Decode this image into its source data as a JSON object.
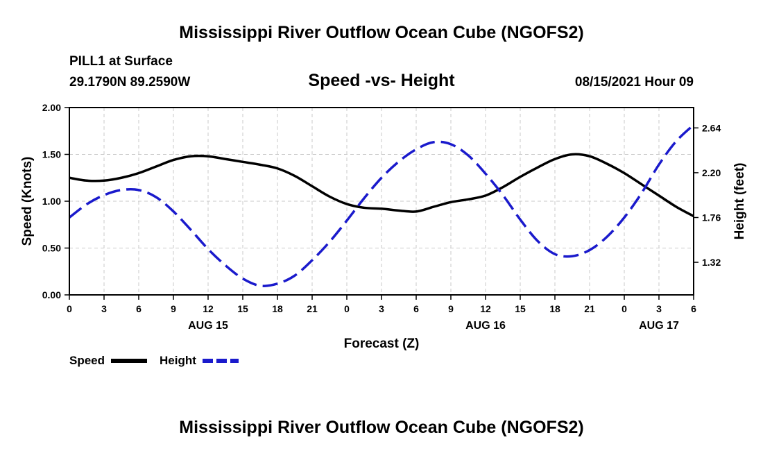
{
  "chart_data": {
    "type": "line",
    "title": "Mississippi River Outflow Ocean Cube (NGOFS2)",
    "footer_title": "Mississippi River Outflow Ocean Cube (NGOFS2)",
    "subtitle": "Speed -vs- Height",
    "station": "PILL1 at Surface",
    "coords": "29.1790N  89.2590W",
    "datetime": "08/15/2021 Hour 09",
    "xlabel": "Forecast (Z)",
    "ylabel_left": "Speed (Knots)",
    "ylabel_right": "Height (feet)",
    "x_range_hours": [
      0,
      54
    ],
    "y_left_range": [
      0,
      2
    ],
    "y_right_range": [
      1,
      2.84
    ],
    "x_tick_step_hours": 3,
    "x_tick_labels": [
      "0",
      "3",
      "6",
      "9",
      "12",
      "15",
      "18",
      "21",
      "0",
      "3",
      "6",
      "9",
      "12",
      "15",
      "18",
      "21",
      "0",
      "3",
      "6"
    ],
    "y_left_ticks": [
      {
        "value": 0,
        "label": "0.00"
      },
      {
        "value": 0.5,
        "label": "0.50"
      },
      {
        "value": 1.0,
        "label": "1.00"
      },
      {
        "value": 1.5,
        "label": "1.50"
      },
      {
        "value": 2.0,
        "label": "2.00"
      }
    ],
    "y_right_ticks": [
      {
        "value": 1.32,
        "label": "1.32"
      },
      {
        "value": 1.76,
        "label": "1.76"
      },
      {
        "value": 2.2,
        "label": "2.20"
      },
      {
        "value": 2.64,
        "label": "2.64"
      }
    ],
    "day_labels": [
      {
        "hour": 12,
        "label": "AUG 15"
      },
      {
        "hour": 36,
        "label": "AUG 16"
      },
      {
        "hour": 51,
        "label": "AUG 17"
      }
    ],
    "grid": true,
    "legend_position": "bottom-left",
    "series": [
      {
        "name": "Speed",
        "axis": "left",
        "color": "#000000",
        "style": "solid",
        "x": [
          0,
          1.5,
          3,
          4.5,
          6,
          7.5,
          9,
          10.5,
          12,
          13.5,
          15,
          16.5,
          18,
          19.5,
          21,
          22.5,
          24,
          25.5,
          27,
          28.5,
          30,
          31.5,
          33,
          34.5,
          36,
          37.5,
          39,
          40.5,
          42,
          43.5,
          45,
          46.5,
          48,
          49.5,
          51,
          52.5,
          54
        ],
        "values": [
          1.25,
          1.22,
          1.22,
          1.25,
          1.3,
          1.37,
          1.44,
          1.48,
          1.48,
          1.45,
          1.42,
          1.39,
          1.35,
          1.27,
          1.16,
          1.05,
          0.97,
          0.93,
          0.92,
          0.9,
          0.89,
          0.94,
          0.99,
          1.02,
          1.06,
          1.15,
          1.26,
          1.36,
          1.45,
          1.5,
          1.48,
          1.4,
          1.3,
          1.18,
          1.06,
          0.94,
          0.84
        ]
      },
      {
        "name": "Height",
        "axis": "right",
        "color": "#1a1acc",
        "style": "dashed",
        "x": [
          0,
          1.5,
          3,
          4.5,
          6,
          7.5,
          9,
          10.5,
          12,
          13.5,
          15,
          16.5,
          18,
          19.5,
          21,
          22.5,
          24,
          25.5,
          27,
          28.5,
          30,
          31.5,
          33,
          34.5,
          36,
          37.5,
          39,
          40.5,
          42,
          43.5,
          45,
          46.5,
          48,
          49.5,
          51,
          52.5,
          54
        ],
        "values": [
          1.76,
          1.89,
          1.98,
          2.03,
          2.03,
          1.96,
          1.82,
          1.64,
          1.45,
          1.29,
          1.16,
          1.09,
          1.11,
          1.19,
          1.34,
          1.52,
          1.73,
          1.95,
          2.15,
          2.31,
          2.43,
          2.5,
          2.48,
          2.37,
          2.19,
          1.98,
          1.74,
          1.53,
          1.4,
          1.38,
          1.44,
          1.57,
          1.76,
          2.0,
          2.28,
          2.51,
          2.67
        ]
      }
    ]
  }
}
